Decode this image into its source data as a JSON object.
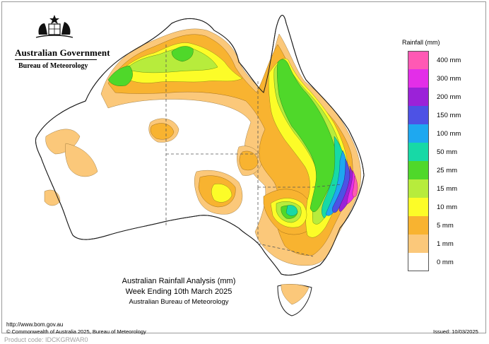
{
  "header": {
    "gov_title": "Australian Government",
    "bureau_name": "Bureau of Meteorology"
  },
  "legend": {
    "title": "Rainfall (mm)",
    "classes": [
      {
        "label": "400 mm",
        "color": "#ff59b4"
      },
      {
        "label": "300 mm",
        "color": "#e32ee8"
      },
      {
        "label": "200 mm",
        "color": "#9b22d8"
      },
      {
        "label": "150 mm",
        "color": "#4d52e5"
      },
      {
        "label": "100 mm",
        "color": "#1ea8f0"
      },
      {
        "label": "50 mm",
        "color": "#17d9a6"
      },
      {
        "label": "25 mm",
        "color": "#4fd82a"
      },
      {
        "label": "15 mm",
        "color": "#b7ec3c"
      },
      {
        "label": "10 mm",
        "color": "#fcfc28"
      },
      {
        "label": "5 mm",
        "color": "#f8b330"
      },
      {
        "label": "1 mm",
        "color": "#fbc87a"
      },
      {
        "label": "0 mm",
        "color": "#ffffff"
      }
    ]
  },
  "titles": {
    "line1": "Australian Rainfall Analysis (mm)",
    "line2": "Week Ending 10th March 2025",
    "line3": "Australian Bureau of Meteorology"
  },
  "footer": {
    "url": "http://www.bom.gov.au",
    "copyright": "© Commonwealth of Australia 2025, Bureau of Meteorology",
    "issued": "Issued: 10/03/2025",
    "product_code": "Product code: IDCKGRWAR0"
  }
}
